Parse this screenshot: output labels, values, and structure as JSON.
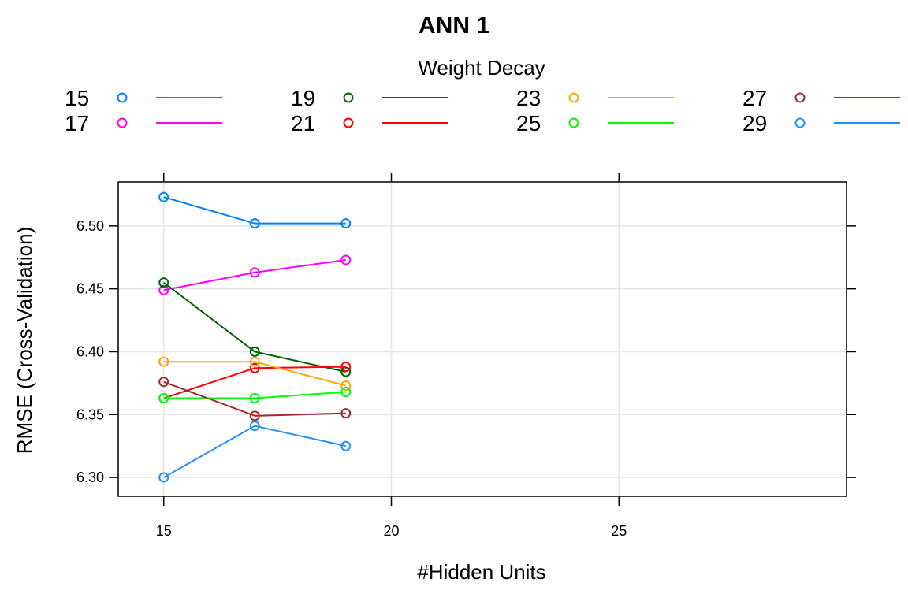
{
  "chart_data": {
    "type": "line",
    "title": "ANN 1",
    "xlabel": "#Hidden Units",
    "ylabel": "RMSE (Cross-Validation)",
    "xlim": [
      14,
      30
    ],
    "ylim": [
      6.285,
      6.535
    ],
    "xticks": [
      15,
      20,
      25
    ],
    "xtick_labels": [
      "15",
      "20",
      "25"
    ],
    "yticks": [
      6.3,
      6.35,
      6.4,
      6.45,
      6.5
    ],
    "ytick_labels": [
      "6.30",
      "6.35",
      "6.40",
      "6.45",
      "6.50"
    ],
    "grid": true,
    "legend": {
      "title": "Weight Decay",
      "placement": "top",
      "columns": 4
    },
    "x": [
      15,
      17,
      19
    ],
    "series": [
      {
        "name": "15",
        "color": "#0080FF",
        "values": [
          6.523,
          6.502,
          6.502
        ]
      },
      {
        "name": "17",
        "color": "#FF00FF",
        "values": [
          6.449,
          6.463,
          6.473
        ]
      },
      {
        "name": "19",
        "color": "#006400",
        "values": [
          6.455,
          6.4,
          6.384
        ]
      },
      {
        "name": "21",
        "color": "#FF0000",
        "values": [
          6.363,
          6.387,
          6.388
        ]
      },
      {
        "name": "23",
        "color": "#FFA500",
        "values": [
          6.392,
          6.392,
          6.373
        ]
      },
      {
        "name": "25",
        "color": "#00FF00",
        "values": [
          6.363,
          6.363,
          6.368
        ]
      },
      {
        "name": "27",
        "color": "#A52A2A",
        "values": [
          6.376,
          6.349,
          6.351
        ]
      },
      {
        "name": "29",
        "color": "#1E90FF",
        "values": [
          6.3,
          6.341,
          6.325
        ]
      }
    ]
  }
}
